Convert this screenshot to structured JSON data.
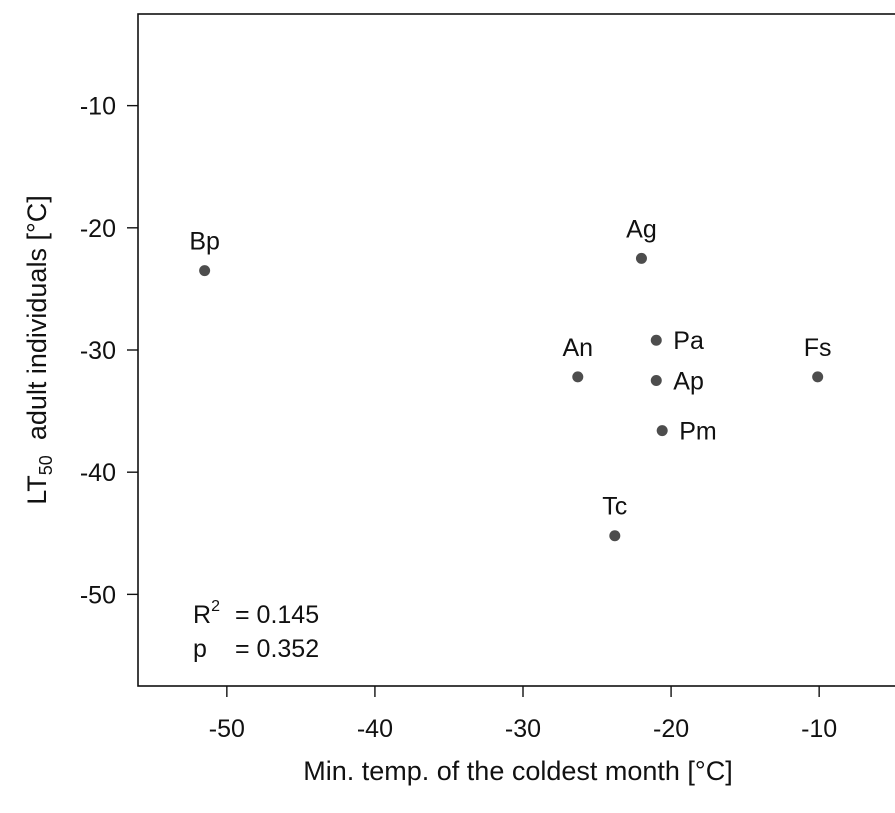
{
  "chart_data": {
    "type": "scatter",
    "xlabel": "Min. temp. of the coldest month [°C]",
    "ylabel": {
      "prefix": "LT",
      "subscript": "50",
      "suffix": "  adult individuals [°C]"
    },
    "xlim": [
      -56,
      -4
    ],
    "ylim": [
      -57.5,
      -2.5
    ],
    "xticks": [
      -50,
      -40,
      -30,
      -20,
      -10
    ],
    "yticks": [
      -50,
      -40,
      -30,
      -20,
      -10
    ],
    "xtick_labels": [
      "-50",
      "-40",
      "-30",
      "-20",
      "-10"
    ],
    "ytick_labels": [
      "-50",
      "-40",
      "-30",
      "-20",
      "-10"
    ],
    "grid": false,
    "points": [
      {
        "label": "Bp",
        "x": -51.5,
        "y": -23.5,
        "label_pos": "above"
      },
      {
        "label": "Ag",
        "x": -22.0,
        "y": -22.5,
        "label_pos": "above"
      },
      {
        "label": "An",
        "x": -26.3,
        "y": -32.2,
        "label_pos": "above"
      },
      {
        "label": "Pa",
        "x": -21.0,
        "y": -29.2,
        "label_pos": "right"
      },
      {
        "label": "Ap",
        "x": -21.0,
        "y": -32.5,
        "label_pos": "right"
      },
      {
        "label": "Pm",
        "x": -20.6,
        "y": -36.6,
        "label_pos": "right"
      },
      {
        "label": "Fs",
        "x": -10.1,
        "y": -32.2,
        "label_pos": "above"
      },
      {
        "label": "Tc",
        "x": -23.8,
        "y": -45.2,
        "label_pos": "above"
      }
    ],
    "stats": {
      "r2_label": "R",
      "r2_exponent": "2",
      "r2_value": "= 0.145",
      "p_label": "p",
      "p_value": "= 0.352"
    },
    "marker_color": "#4d4d4d"
  }
}
